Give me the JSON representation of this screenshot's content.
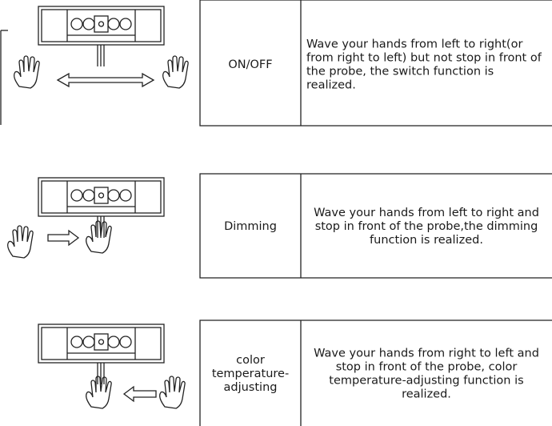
{
  "rows": [
    {
      "mode": [
        "ON/OFF"
      ],
      "description": [
        "Wave your hands from left to right(or",
        "from right to left) but not stop in front of",
        "the probe, the switch function is",
        "realized."
      ]
    },
    {
      "mode": [
        "Dimming"
      ],
      "description": [
        "Wave your hands from left to right and",
        "stop in front of the probe,the dimming",
        "function is realized."
      ]
    },
    {
      "mode": [
        "color",
        "temperature-",
        "adjusting"
      ],
      "description": [
        "Wave your hands from right to left and",
        "stop in front of the probe, color",
        "temperature-adjusting function is",
        "realized."
      ]
    }
  ]
}
